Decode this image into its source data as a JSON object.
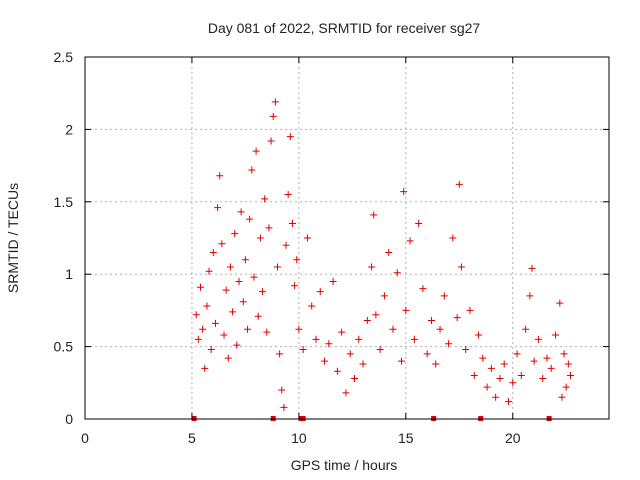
{
  "chart_data": {
    "type": "scatter",
    "title": "Day 081 of 2022, SRMTID for receiver sg27",
    "xlabel": "GPS time / hours",
    "ylabel": "SRMTID / TECUs",
    "xlim": [
      0,
      24.5
    ],
    "ylim": [
      0,
      2.5
    ],
    "xticks": [
      0,
      5,
      10,
      15,
      20
    ],
    "yticks": [
      0,
      0.5,
      1,
      1.5,
      2,
      2.5
    ],
    "xtick_labels": [
      "0",
      "5",
      "10",
      "15",
      "20"
    ],
    "ytick_labels": [
      "0",
      "0.5",
      "1",
      "1.5",
      "2",
      "2.5"
    ],
    "grid": true,
    "marker": "plus",
    "color": "#e00000",
    "zero_markers_x": [
      5.1,
      8.8,
      10.1,
      10.2,
      16.3,
      18.5,
      21.7
    ],
    "series": [
      {
        "name": "SRMTID",
        "points": [
          [
            5.2,
            0.72
          ],
          [
            5.3,
            0.55
          ],
          [
            5.4,
            0.91
          ],
          [
            5.5,
            0.62
          ],
          [
            5.6,
            0.35
          ],
          [
            5.7,
            0.78
          ],
          [
            5.8,
            1.02
          ],
          [
            5.9,
            0.48
          ],
          [
            6.0,
            1.15
          ],
          [
            6.1,
            0.66
          ],
          [
            6.2,
            1.46
          ],
          [
            6.3,
            1.68
          ],
          [
            6.4,
            1.21
          ],
          [
            6.5,
            0.58
          ],
          [
            6.6,
            0.89
          ],
          [
            6.7,
            0.42
          ],
          [
            6.8,
            1.05
          ],
          [
            6.9,
            0.74
          ],
          [
            7.0,
            1.28
          ],
          [
            7.1,
            0.51
          ],
          [
            7.2,
            0.95
          ],
          [
            7.3,
            1.43
          ],
          [
            7.4,
            0.81
          ],
          [
            7.5,
            1.1
          ],
          [
            7.6,
            0.62
          ],
          [
            7.7,
            1.38
          ],
          [
            7.8,
            1.72
          ],
          [
            7.9,
            0.98
          ],
          [
            8.0,
            1.85
          ],
          [
            8.1,
            0.71
          ],
          [
            8.2,
            1.25
          ],
          [
            8.3,
            0.88
          ],
          [
            8.4,
            1.52
          ],
          [
            8.5,
            0.6
          ],
          [
            8.6,
            1.32
          ],
          [
            8.7,
            1.92
          ],
          [
            8.8,
            2.09
          ],
          [
            8.9,
            2.19
          ],
          [
            9.0,
            1.05
          ],
          [
            9.1,
            0.45
          ],
          [
            9.2,
            0.2
          ],
          [
            9.3,
            0.08
          ],
          [
            9.4,
            1.2
          ],
          [
            9.5,
            1.55
          ],
          [
            9.6,
            1.95
          ],
          [
            9.7,
            1.35
          ],
          [
            9.8,
            0.92
          ],
          [
            9.9,
            1.1
          ],
          [
            10.0,
            0.62
          ],
          [
            10.2,
            0.48
          ],
          [
            10.4,
            1.25
          ],
          [
            10.6,
            0.78
          ],
          [
            10.8,
            0.55
          ],
          [
            11.0,
            0.88
          ],
          [
            11.2,
            0.4
          ],
          [
            11.4,
            0.52
          ],
          [
            11.6,
            0.95
          ],
          [
            11.8,
            0.33
          ],
          [
            12.0,
            0.6
          ],
          [
            12.2,
            0.18
          ],
          [
            12.4,
            0.45
          ],
          [
            12.6,
            0.28
          ],
          [
            12.8,
            0.55
          ],
          [
            13.0,
            0.38
          ],
          [
            13.2,
            0.68
          ],
          [
            13.4,
            1.05
          ],
          [
            13.5,
            1.41
          ],
          [
            13.6,
            0.72
          ],
          [
            13.8,
            0.48
          ],
          [
            14.0,
            0.85
          ],
          [
            14.2,
            1.15
          ],
          [
            14.4,
            0.62
          ],
          [
            14.6,
            1.01
          ],
          [
            14.8,
            0.4
          ],
          [
            14.9,
            1.57
          ],
          [
            15.0,
            0.75
          ],
          [
            15.2,
            1.23
          ],
          [
            15.4,
            0.55
          ],
          [
            15.6,
            1.35
          ],
          [
            15.8,
            0.9
          ],
          [
            16.0,
            0.45
          ],
          [
            16.2,
            0.68
          ],
          [
            16.4,
            0.38
          ],
          [
            16.6,
            0.62
          ],
          [
            16.8,
            0.85
          ],
          [
            17.0,
            0.52
          ],
          [
            17.2,
            1.25
          ],
          [
            17.4,
            0.7
          ],
          [
            17.5,
            1.62
          ],
          [
            17.6,
            1.05
          ],
          [
            17.8,
            0.48
          ],
          [
            18.0,
            0.75
          ],
          [
            18.2,
            0.3
          ],
          [
            18.4,
            0.58
          ],
          [
            18.6,
            0.42
          ],
          [
            18.8,
            0.22
          ],
          [
            19.0,
            0.35
          ],
          [
            19.2,
            0.15
          ],
          [
            19.4,
            0.28
          ],
          [
            19.6,
            0.38
          ],
          [
            19.8,
            0.12
          ],
          [
            20.0,
            0.25
          ],
          [
            20.2,
            0.45
          ],
          [
            20.4,
            0.3
          ],
          [
            20.6,
            0.62
          ],
          [
            20.8,
            0.85
          ],
          [
            20.9,
            1.04
          ],
          [
            21.0,
            0.4
          ],
          [
            21.2,
            0.55
          ],
          [
            21.4,
            0.28
          ],
          [
            21.6,
            0.42
          ],
          [
            21.8,
            0.35
          ],
          [
            22.0,
            0.58
          ],
          [
            22.2,
            0.8
          ],
          [
            22.3,
            0.15
          ],
          [
            22.4,
            0.45
          ],
          [
            22.5,
            0.22
          ],
          [
            22.6,
            0.38
          ],
          [
            22.7,
            0.3
          ]
        ]
      }
    ]
  }
}
